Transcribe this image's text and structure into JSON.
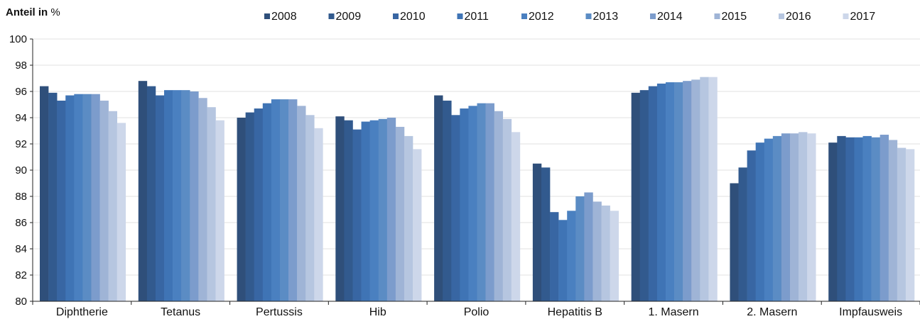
{
  "chart_data": {
    "type": "bar",
    "ylabel_bold": "Anteil in",
    "ylabel_unit": "%",
    "ylim": [
      80,
      100
    ],
    "yticks": [
      80,
      82,
      84,
      86,
      88,
      90,
      92,
      94,
      96,
      98,
      100
    ],
    "grid": true,
    "legend_position": "top",
    "categories": [
      "Diphtherie",
      "Tetanus",
      "Pertussis",
      "Hib",
      "Polio",
      "Hepatitis B",
      "1. Masern",
      "2. Masern",
      "Impfausweis"
    ],
    "series": [
      {
        "name": "2008",
        "color": "#2f4f7a",
        "values": [
          96.4,
          96.8,
          94.0,
          94.1,
          95.7,
          90.5,
          95.9,
          89.0,
          92.1
        ]
      },
      {
        "name": "2009",
        "color": "#325a8e",
        "values": [
          95.9,
          96.4,
          94.4,
          93.8,
          95.3,
          90.2,
          96.1,
          90.2,
          92.6
        ]
      },
      {
        "name": "2010",
        "color": "#3866a3",
        "values": [
          95.3,
          95.7,
          94.7,
          93.1,
          94.2,
          86.8,
          96.4,
          91.5,
          92.5
        ]
      },
      {
        "name": "2011",
        "color": "#3f74b5",
        "values": [
          95.7,
          96.1,
          95.1,
          93.7,
          94.7,
          86.2,
          96.6,
          92.1,
          92.5
        ]
      },
      {
        "name": "2012",
        "color": "#4a80c0",
        "values": [
          95.8,
          96.1,
          95.4,
          93.8,
          94.9,
          86.9,
          96.7,
          92.4,
          92.6
        ]
      },
      {
        "name": "2013",
        "color": "#5b8cc4",
        "values": [
          95.8,
          96.1,
          95.4,
          93.9,
          95.1,
          88.0,
          96.7,
          92.6,
          92.5
        ]
      },
      {
        "name": "2014",
        "color": "#7c9ccc",
        "values": [
          95.8,
          96.0,
          95.4,
          94.0,
          95.1,
          88.3,
          96.8,
          92.8,
          92.7
        ]
      },
      {
        "name": "2015",
        "color": "#9fb4d6",
        "values": [
          95.3,
          95.5,
          94.9,
          93.3,
          94.5,
          87.6,
          96.9,
          92.8,
          92.3
        ]
      },
      {
        "name": "2016",
        "color": "#b6c6e0",
        "values": [
          94.5,
          94.8,
          94.2,
          92.6,
          93.9,
          87.3,
          97.1,
          92.9,
          91.7
        ]
      },
      {
        "name": "2017",
        "color": "#cdd7ea",
        "values": [
          93.6,
          93.8,
          93.2,
          91.6,
          92.9,
          86.9,
          97.1,
          92.8,
          91.6
        ]
      }
    ]
  }
}
